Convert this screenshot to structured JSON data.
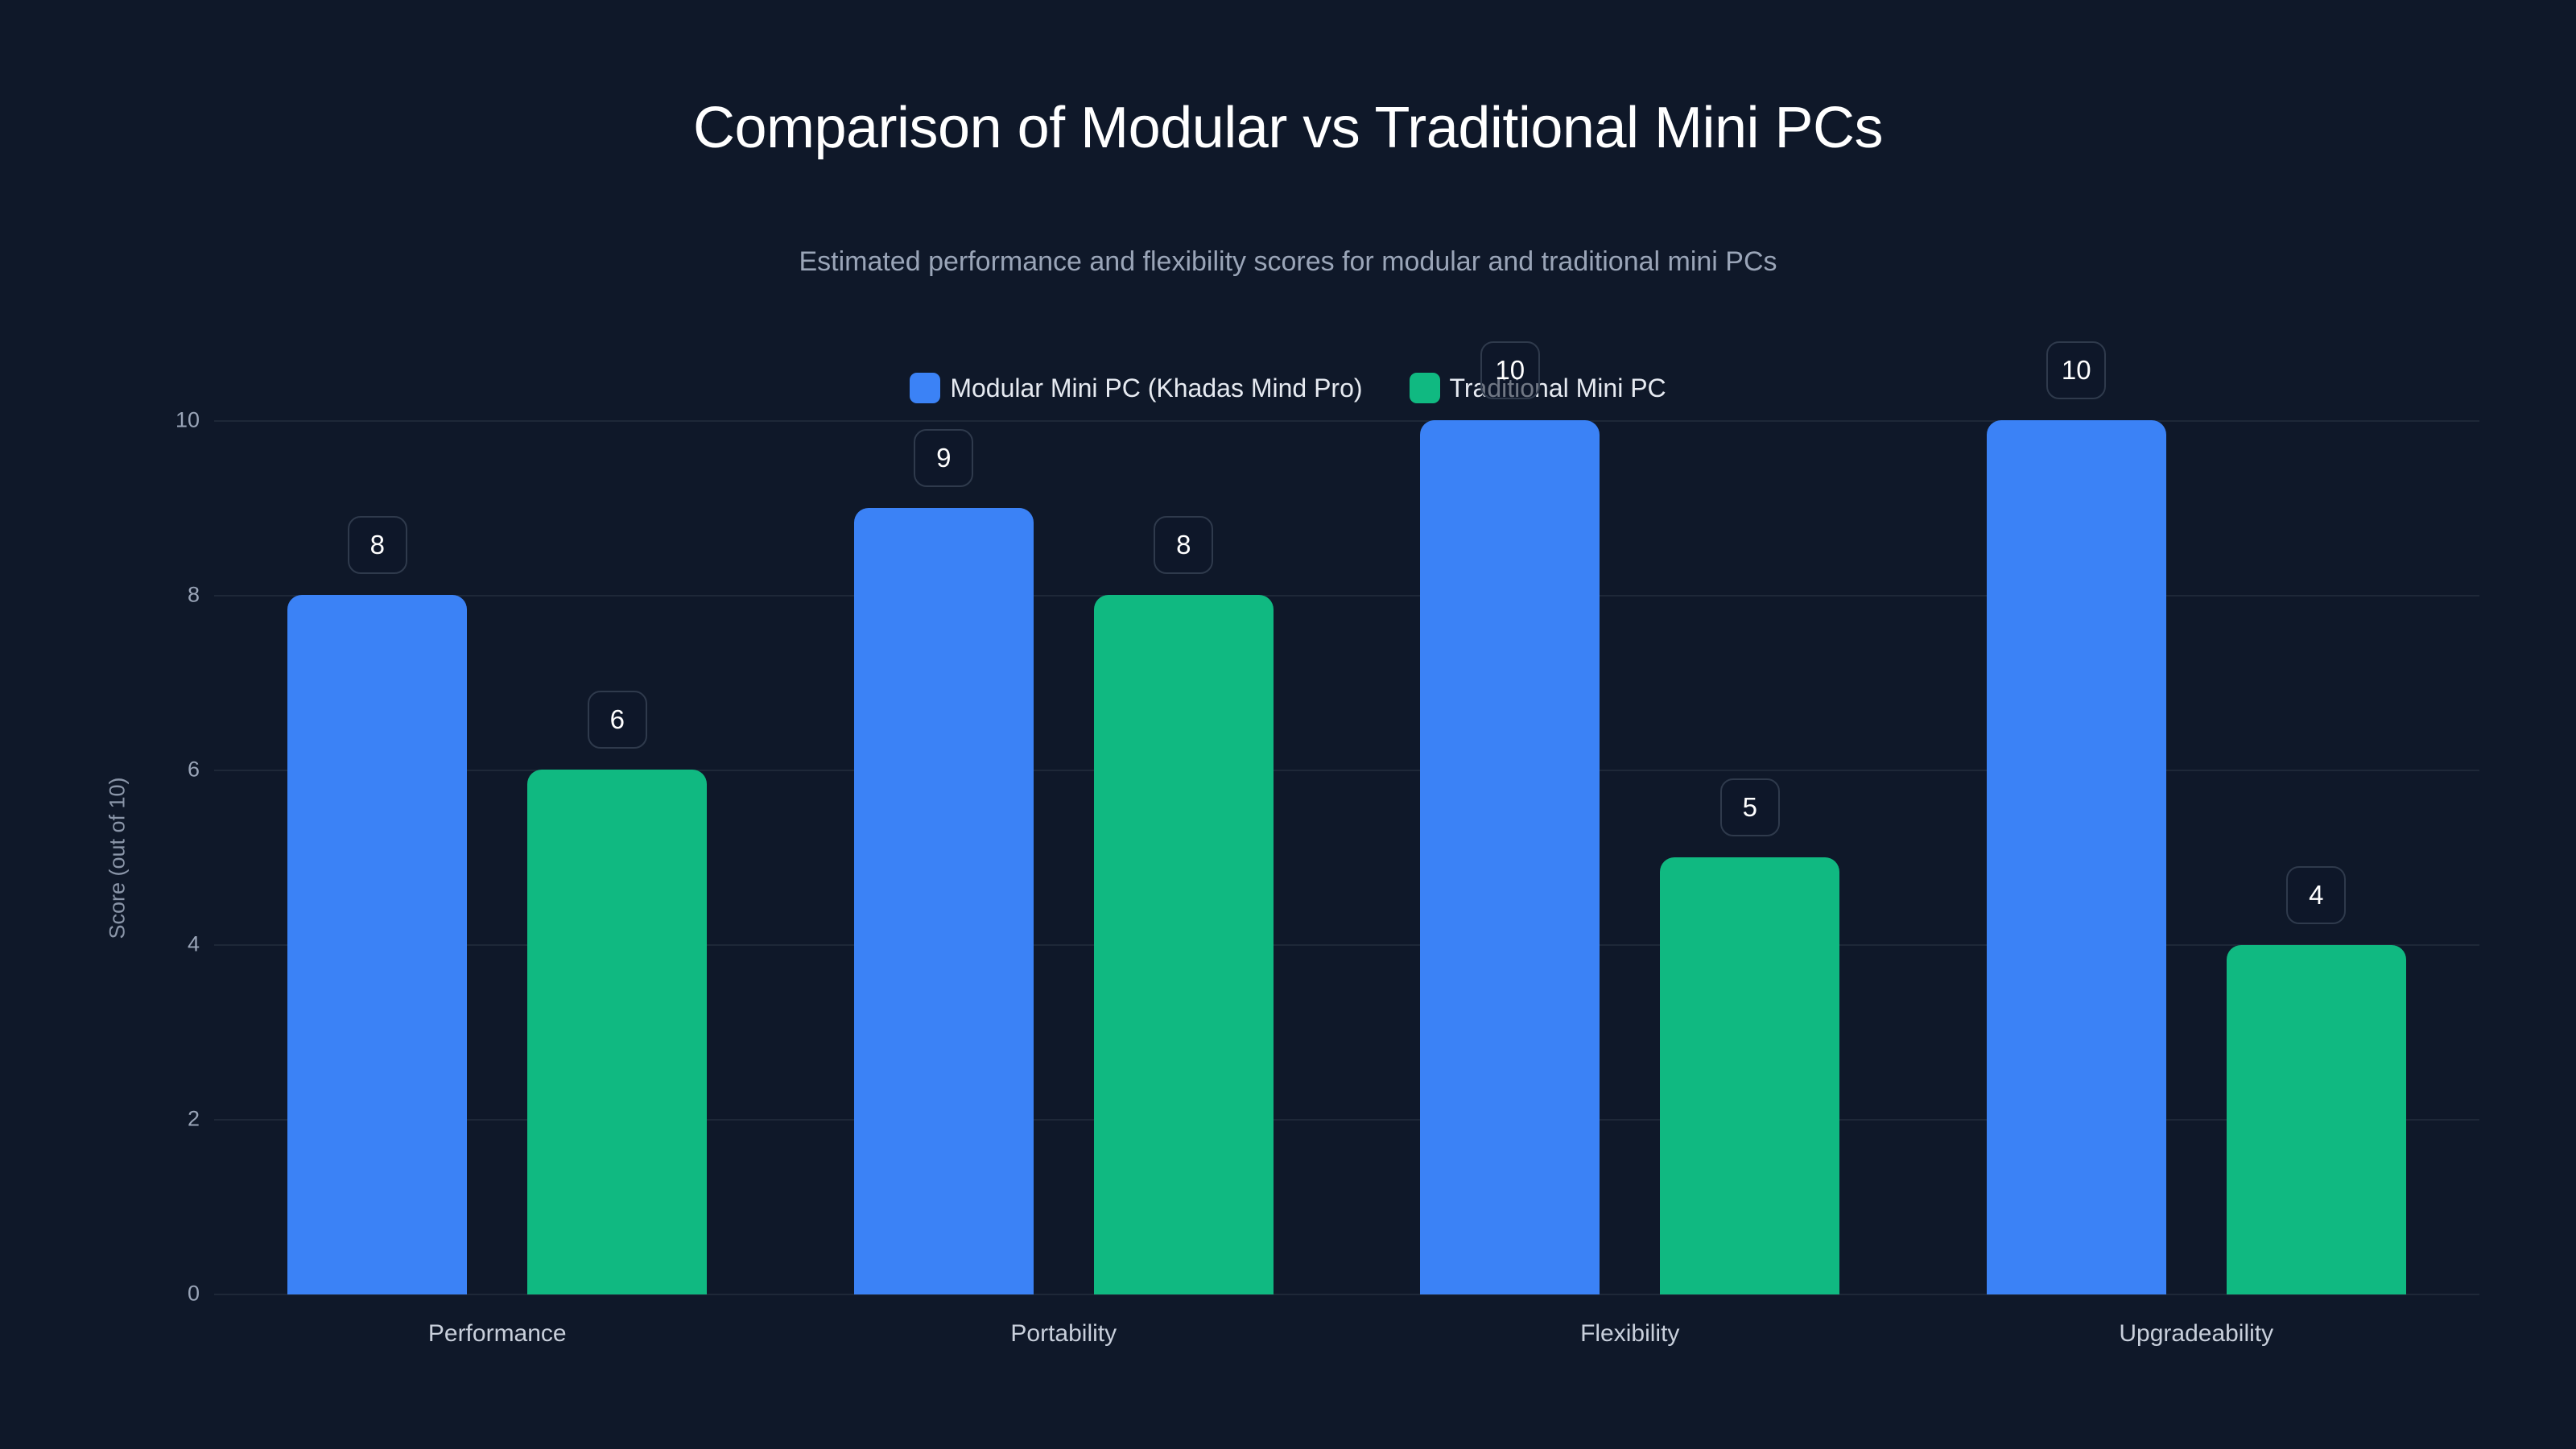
{
  "header": {
    "title": "Comparison of Modular vs Traditional Mini PCs",
    "subtitle": "Estimated performance and flexibility scores for modular and traditional mini PCs"
  },
  "legend": [
    {
      "label": "Modular Mini PC (Khadas Mind Pro)",
      "color": "#3b82f6"
    },
    {
      "label": "Traditional Mini PC",
      "color": "#10b981"
    }
  ],
  "axes": {
    "ylabel": "Score (out of 10)",
    "yticks": [
      "0",
      "2",
      "4",
      "6",
      "8",
      "10"
    ]
  },
  "chart_data": {
    "type": "bar",
    "title": "Comparison of Modular vs Traditional Mini PCs",
    "subtitle": "Estimated performance and flexibility scores for modular and traditional mini PCs",
    "categories": [
      "Performance",
      "Portability",
      "Flexibility",
      "Upgradeability"
    ],
    "series": [
      {
        "name": "Modular Mini PC (Khadas Mind Pro)",
        "color": "#3b82f6",
        "values": [
          8,
          9,
          10,
          10
        ]
      },
      {
        "name": "Traditional Mini PC",
        "color": "#10b981",
        "values": [
          6,
          8,
          5,
          4
        ]
      }
    ],
    "xlabel": "",
    "ylabel": "Score (out of 10)",
    "ylim": [
      0,
      10
    ],
    "yticks": [
      0,
      2,
      4,
      6,
      8,
      10
    ],
    "grid": true,
    "legend_position": "top-center",
    "data_labels": true
  }
}
